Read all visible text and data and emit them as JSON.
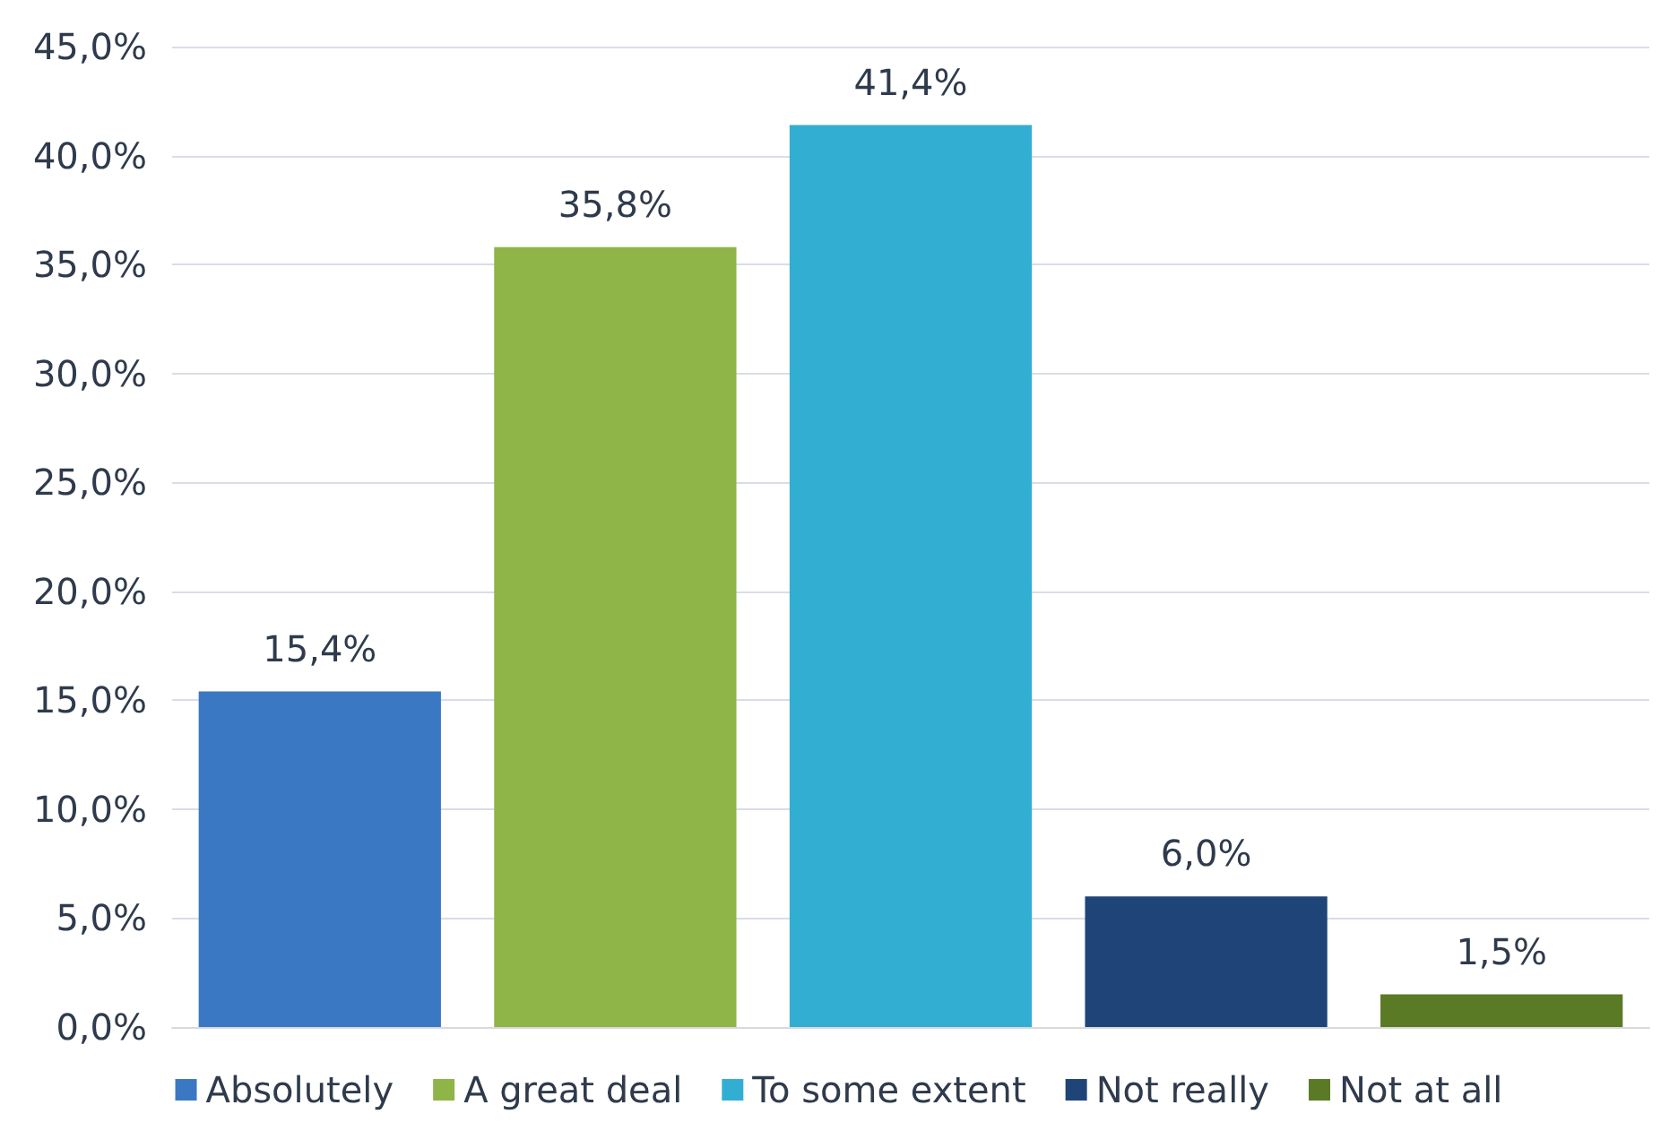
{
  "chart_data": {
    "type": "bar",
    "categories": [
      null,
      null,
      null,
      null,
      null
    ],
    "series": [
      {
        "name": "Absolutely",
        "color": "#3b78c4",
        "values": [
          15.4,
          null,
          null,
          null,
          null
        ],
        "value_labels": [
          "15,4%",
          null,
          null,
          null,
          null
        ]
      },
      {
        "name": "A great deal",
        "color": "#8fb448",
        "values": [
          null,
          35.8,
          null,
          null,
          null
        ],
        "value_labels": [
          null,
          "35,8%",
          null,
          null,
          null
        ]
      },
      {
        "name": "To some extent",
        "color": "#33aed3",
        "values": [
          null,
          null,
          41.4,
          null,
          null
        ],
        "value_labels": [
          null,
          null,
          "41,4%",
          null,
          null
        ]
      },
      {
        "name": "Not really",
        "color": "#1f4578",
        "values": [
          null,
          null,
          null,
          6.0,
          null
        ],
        "value_labels": [
          null,
          null,
          null,
          "6,0%",
          null
        ]
      },
      {
        "name": "Not at all",
        "color": "#5a7a26",
        "values": [
          null,
          null,
          null,
          null,
          1.5
        ],
        "value_labels": [
          null,
          null,
          null,
          null,
          "1,5%"
        ]
      }
    ],
    "ylim": [
      0,
      45
    ],
    "yticks": [
      {
        "value": 0,
        "label": "0,0%"
      },
      {
        "value": 5,
        "label": "5,0%"
      },
      {
        "value": 10,
        "label": "10,0%"
      },
      {
        "value": 15,
        "label": "15,0%"
      },
      {
        "value": 20,
        "label": "20,0%"
      },
      {
        "value": 25,
        "label": "25,0%"
      },
      {
        "value": 30,
        "label": "30,0%"
      },
      {
        "value": 35,
        "label": "35,0%"
      },
      {
        "value": 40,
        "label": "40,0%"
      },
      {
        "value": 45,
        "label": "45,0%"
      }
    ],
    "grid": "y",
    "legend": "bottom",
    "tick_labels": "y"
  }
}
